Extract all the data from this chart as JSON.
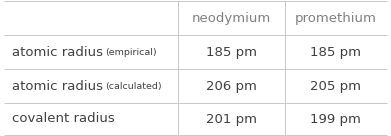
{
  "col_headers": [
    "",
    "neodymium",
    "promethium"
  ],
  "rows": [
    {
      "label_main": "atomic radius",
      "label_sub": " (empirical)",
      "values": [
        "185 pm",
        "185 pm"
      ]
    },
    {
      "label_main": "atomic radius",
      "label_sub": "  (calculated)",
      "values": [
        "206 pm",
        "205 pm"
      ]
    },
    {
      "label_main": "covalent radius",
      "label_sub": "",
      "values": [
        "201 pm",
        "199 pm"
      ]
    }
  ],
  "bg_color": "#ffffff",
  "header_text_color": "#808080",
  "label_text_color": "#404040",
  "value_text_color": "#404040",
  "grid_color": "#c8c8c8",
  "fig_width": 3.91,
  "fig_height": 1.36,
  "label_fontsize": 9.5,
  "sub_fontsize": 6.8,
  "header_fontsize": 9.5,
  "value_fontsize": 9.5
}
